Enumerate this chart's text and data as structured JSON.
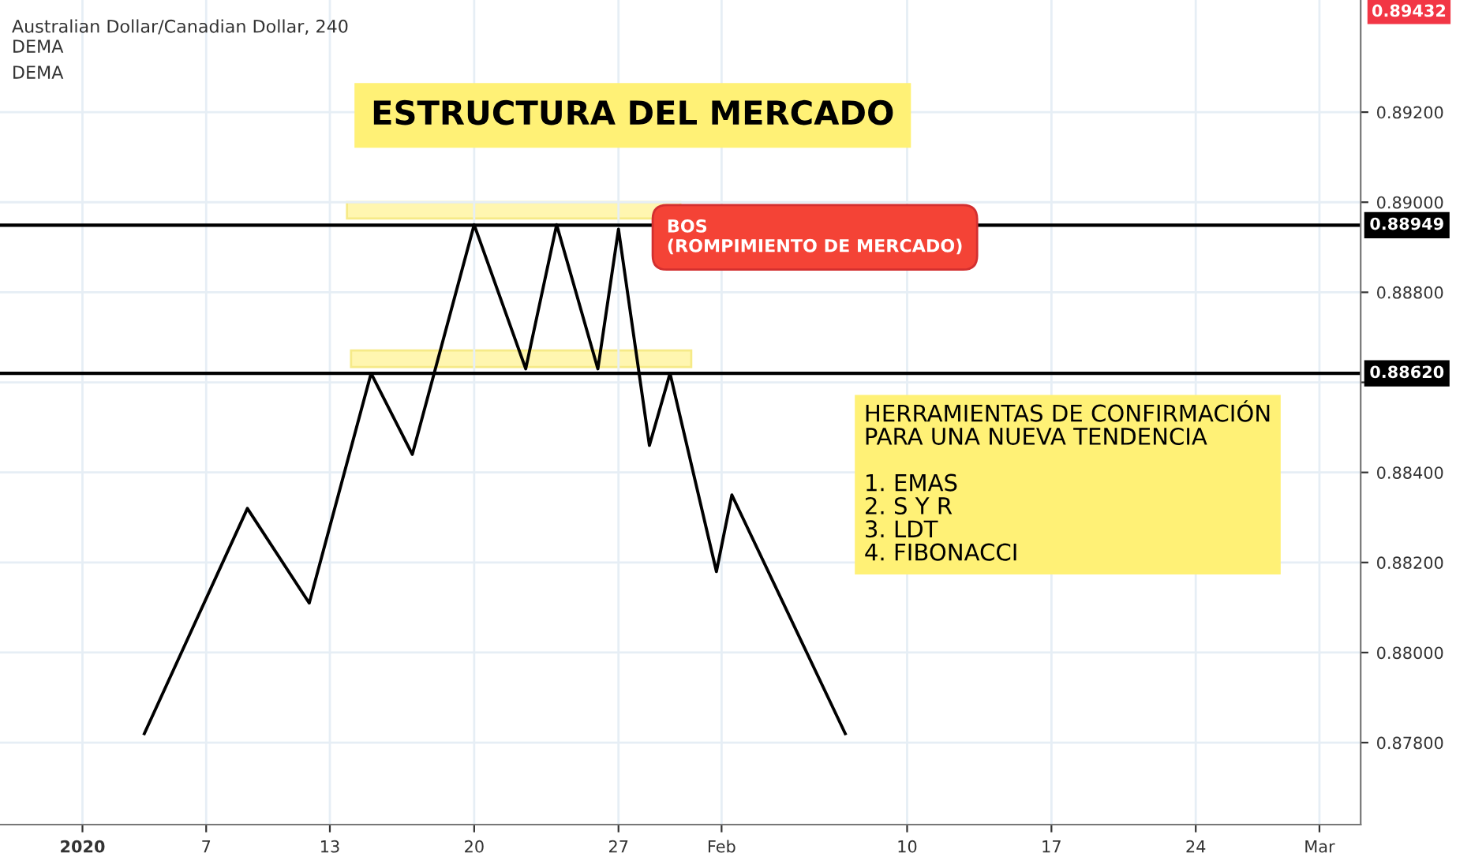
{
  "chart_data": {
    "type": "line",
    "title": "ESTRUCTURA DEL MERCADO",
    "subtitle": "Australian Dollar/Canadian Dollar, 240",
    "x": [
      "2020-01-04",
      "2020-01-09",
      "2020-01-12",
      "2020-01-15",
      "2020-01-17",
      "2020-01-20",
      "2020-01-22T12:00",
      "2020-01-24",
      "2020-01-26",
      "2020-01-27",
      "2020-01-28T12:00",
      "2020-01-29T12:00",
      "2020-01-31T18:00",
      "2020-02-01T12:00",
      "2020-02-07"
    ],
    "series": [
      {
        "color": "#000000",
        "values": [
          0.8782,
          0.8832,
          0.8811,
          0.8862,
          0.8844,
          0.8895,
          0.8863,
          0.8895,
          0.8863,
          0.8894,
          0.8846,
          0.8862,
          0.8818,
          0.8835,
          0.8782
        ]
      }
    ],
    "xlim": [
      "2019-12-28",
      "2020-03-03"
    ],
    "xticks": [
      {
        "value": "2020-01-01",
        "label": "2020"
      },
      {
        "value": "2020-01-07",
        "label": "7"
      },
      {
        "value": "2020-01-13",
        "label": "13"
      },
      {
        "value": "2020-01-20",
        "label": "20"
      },
      {
        "value": "2020-01-27",
        "label": "27"
      },
      {
        "value": "2020-02-01",
        "label": "Feb"
      },
      {
        "value": "2020-02-10",
        "label": "10"
      },
      {
        "value": "2020-02-17",
        "label": "17"
      },
      {
        "value": "2020-02-24",
        "label": "24"
      },
      {
        "value": "2020-03-01",
        "label": "Mar"
      }
    ],
    "ylim": [
      0.87618,
      0.89449
    ],
    "yticks": [
      {
        "value": 0.878,
        "label": "0.87800"
      },
      {
        "value": 0.88,
        "label": "0.88000"
      },
      {
        "value": 0.882,
        "label": "0.88200"
      },
      {
        "value": 0.884,
        "label": "0.88400"
      },
      {
        "value": 0.886,
        "label": null
      },
      {
        "value": 0.888,
        "label": "0.88800"
      },
      {
        "value": 0.89,
        "label": "0.89000"
      },
      {
        "value": 0.892,
        "label": "0.89200"
      }
    ],
    "ref_lines": [
      {
        "axis": "y",
        "value": 0.88949,
        "label": "0.88949",
        "color": "#000000"
      },
      {
        "axis": "y",
        "value": 0.8862,
        "label": "0.88620",
        "color": "#000000"
      }
    ],
    "annotations": [
      "DEMA",
      "DEMA",
      "BOS\n(ROMPIMIENTO DE MERCADO)",
      "HERRAMIENTAS DE CONFIRMACIÓN\nPARA UNA NUEVA TENDENCIA\n\n1. EMAS\n2. S Y R\n3. LDT\n4. FIBONACCI",
      "0.89432"
    ],
    "grid": true
  }
}
